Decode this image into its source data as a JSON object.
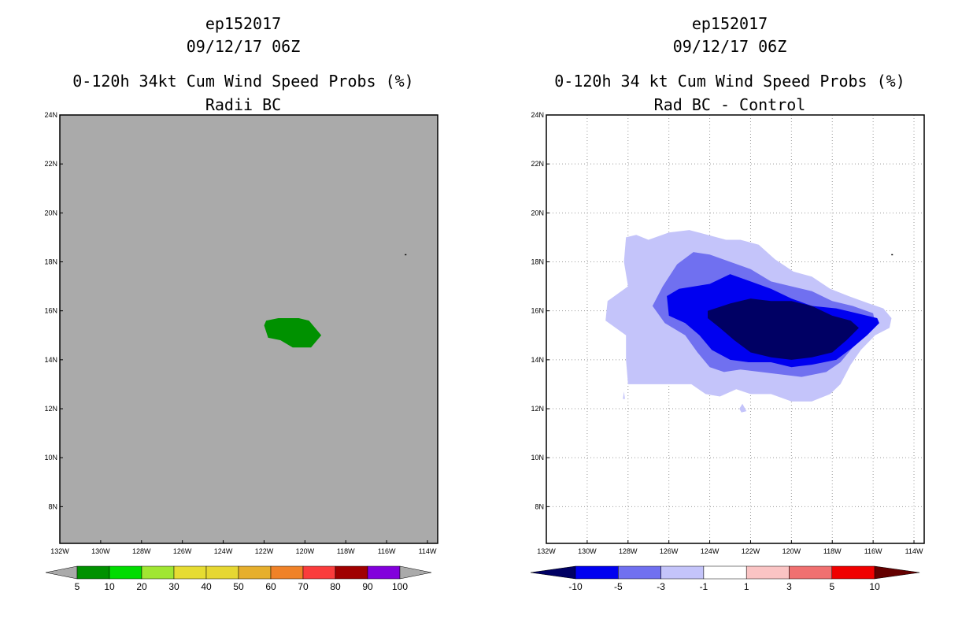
{
  "panels": [
    {
      "id": "left",
      "title_line1": "ep152017",
      "title_line2": "09/12/17 06Z",
      "title_line3": "0-120h 34kt Cum Wind Speed Probs (%)",
      "title_line4": "Radii BC"
    },
    {
      "id": "right",
      "title_line1": "ep152017",
      "title_line2": "09/12/17 06Z",
      "title_line3": "0-120h 34 kt Cum Wind Speed Probs (%)",
      "title_line4": "Rad BC - Control"
    }
  ],
  "chart_data": [
    {
      "type": "heatmap",
      "title": "0-120h 34kt Cum Wind Speed Probs (%) Radii BC",
      "lon_range": [
        -132,
        -113.5
      ],
      "lat_range": [
        6.5,
        24
      ],
      "x_ticks": [
        "132W",
        "130W",
        "128W",
        "126W",
        "124W",
        "122W",
        "120W",
        "118W",
        "116W",
        "114W"
      ],
      "x_tick_values": [
        -132,
        -130,
        -128,
        -126,
        -124,
        -122,
        -120,
        -118,
        -116,
        -114
      ],
      "y_ticks": [
        "24N",
        "22N",
        "20N",
        "18N",
        "16N",
        "14N",
        "12N",
        "10N",
        "8N"
      ],
      "y_tick_values": [
        24,
        22,
        20,
        18,
        16,
        14,
        12,
        10,
        8
      ],
      "grid": false,
      "background_color": "#aaaaaa",
      "colorbar": {
        "labels": [
          "5",
          "10",
          "20",
          "30",
          "40",
          "50",
          "60",
          "70",
          "80",
          "90",
          "100"
        ],
        "colors": [
          "#009100",
          "#00dc00",
          "#a0e632",
          "#e6dc32",
          "#e6d732",
          "#e6af2d",
          "#f08228",
          "#fa3c3c",
          "#a00000",
          "#8200dc"
        ],
        "end_color": "#aaaaaa"
      },
      "regions": [
        {
          "level": "5-10",
          "color": "#009100",
          "polygon": [
            [
              -121.9,
              15.6
            ],
            [
              -121.3,
              15.7
            ],
            [
              -120.3,
              15.7
            ],
            [
              -119.8,
              15.6
            ],
            [
              -119.2,
              15.0
            ],
            [
              -119.7,
              14.5
            ],
            [
              -120.6,
              14.5
            ],
            [
              -121.2,
              14.8
            ],
            [
              -121.8,
              14.9
            ],
            [
              -122.0,
              15.4
            ]
          ]
        }
      ],
      "markers": [
        {
          "lon": -115.07,
          "lat": 18.3
        }
      ]
    },
    {
      "type": "heatmap",
      "title": "0-120h 34 kt Cum Wind Speed Probs (%) Rad BC - Control",
      "lon_range": [
        -132,
        -113.5
      ],
      "lat_range": [
        6.5,
        24
      ],
      "x_ticks": [
        "132W",
        "130W",
        "128W",
        "126W",
        "124W",
        "122W",
        "120W",
        "118W",
        "116W",
        "114W"
      ],
      "x_tick_values": [
        -132,
        -130,
        -128,
        -126,
        -124,
        -122,
        -120,
        -118,
        -116,
        -114
      ],
      "y_ticks": [
        "24N",
        "22N",
        "20N",
        "18N",
        "16N",
        "14N",
        "12N",
        "10N",
        "8N"
      ],
      "y_tick_values": [
        24,
        22,
        20,
        18,
        16,
        14,
        12,
        10,
        8
      ],
      "grid": true,
      "background_color": "#ffffff",
      "colorbar": {
        "labels": [
          "-10",
          "-5",
          "-3",
          "-1",
          "1",
          "3",
          "5",
          "10"
        ],
        "colors": [
          "#0000f0",
          "#7070f0",
          "#c4c4fa",
          "#ffffff",
          "#fac4c4",
          "#f07070",
          "#f00000"
        ],
        "left_end_color": "#000064",
        "right_end_color": "#640000"
      },
      "regions": [
        {
          "level": "-3 to -1",
          "color": "#c4c4fa",
          "polygon": [
            [
              -128.1,
              19.0
            ],
            [
              -127.6,
              19.1
            ],
            [
              -127.0,
              18.9
            ],
            [
              -126.0,
              19.2
            ],
            [
              -125.0,
              19.3
            ],
            [
              -124.1,
              19.1
            ],
            [
              -123.2,
              18.9
            ],
            [
              -122.5,
              18.9
            ],
            [
              -121.6,
              18.7
            ],
            [
              -120.8,
              18.1
            ],
            [
              -119.9,
              17.6
            ],
            [
              -119.0,
              17.4
            ],
            [
              -118.1,
              16.9
            ],
            [
              -117.2,
              16.6
            ],
            [
              -116.2,
              16.3
            ],
            [
              -115.5,
              16.1
            ],
            [
              -115.1,
              15.7
            ],
            [
              -115.2,
              15.3
            ],
            [
              -115.9,
              15.0
            ],
            [
              -116.6,
              14.4
            ],
            [
              -117.1,
              13.8
            ],
            [
              -117.6,
              13.0
            ],
            [
              -118.1,
              12.6
            ],
            [
              -119.0,
              12.3
            ],
            [
              -120.0,
              12.3
            ],
            [
              -121.0,
              12.6
            ],
            [
              -122.0,
              12.6
            ],
            [
              -122.7,
              12.8
            ],
            [
              -123.5,
              12.5
            ],
            [
              -124.2,
              12.6
            ],
            [
              -124.9,
              13.0
            ],
            [
              -126.0,
              13.0
            ],
            [
              -127.0,
              13.0
            ],
            [
              -128.0,
              13.0
            ],
            [
              -128.1,
              14.0
            ],
            [
              -128.1,
              15.0
            ],
            [
              -129.1,
              15.6
            ],
            [
              -129.0,
              16.4
            ],
            [
              -128.0,
              17.0
            ],
            [
              -128.2,
              18.0
            ]
          ]
        },
        {
          "level": "-5 to -3",
          "color": "#7070f0",
          "polygon": [
            [
              -124.8,
              18.4
            ],
            [
              -124.0,
              18.3
            ],
            [
              -123.0,
              18.0
            ],
            [
              -122.0,
              17.7
            ],
            [
              -121.0,
              17.2
            ],
            [
              -120.0,
              17.0
            ],
            [
              -119.0,
              16.8
            ],
            [
              -118.0,
              16.4
            ],
            [
              -117.0,
              16.2
            ],
            [
              -116.0,
              15.9
            ],
            [
              -115.9,
              15.5
            ],
            [
              -116.4,
              15.0
            ],
            [
              -117.0,
              14.5
            ],
            [
              -117.6,
              13.9
            ],
            [
              -118.3,
              13.5
            ],
            [
              -119.5,
              13.3
            ],
            [
              -120.5,
              13.4
            ],
            [
              -121.5,
              13.5
            ],
            [
              -122.5,
              13.6
            ],
            [
              -123.3,
              13.5
            ],
            [
              -124.0,
              13.7
            ],
            [
              -124.6,
              14.3
            ],
            [
              -125.2,
              15.0
            ],
            [
              -126.2,
              15.5
            ],
            [
              -126.8,
              16.2
            ],
            [
              -126.3,
              17.0
            ],
            [
              -125.6,
              17.9
            ]
          ]
        },
        {
          "level": "-10 to -5",
          "color": "#0000f0",
          "polygon": [
            [
              -126.1,
              16.6
            ],
            [
              -125.5,
              16.9
            ],
            [
              -124.0,
              17.1
            ],
            [
              -123.0,
              17.5
            ],
            [
              -122.0,
              17.2
            ],
            [
              -121.0,
              16.9
            ],
            [
              -120.0,
              16.5
            ],
            [
              -119.0,
              16.2
            ],
            [
              -117.8,
              16.1
            ],
            [
              -116.8,
              15.9
            ],
            [
              -115.8,
              15.7
            ],
            [
              -115.7,
              15.5
            ],
            [
              -116.3,
              15.0
            ],
            [
              -117.0,
              14.5
            ],
            [
              -117.8,
              14.0
            ],
            [
              -119.0,
              13.8
            ],
            [
              -120.0,
              13.7
            ],
            [
              -121.0,
              13.9
            ],
            [
              -122.1,
              13.9
            ],
            [
              -123.0,
              14.0
            ],
            [
              -123.9,
              14.4
            ],
            [
              -124.5,
              15.0
            ],
            [
              -125.2,
              15.5
            ],
            [
              -126.0,
              15.8
            ]
          ]
        },
        {
          "level": "< -10",
          "color": "#000064",
          "polygon": [
            [
              -124.1,
              16.0
            ],
            [
              -123.0,
              16.3
            ],
            [
              -122.0,
              16.5
            ],
            [
              -121.0,
              16.4
            ],
            [
              -120.0,
              16.4
            ],
            [
              -119.0,
              16.2
            ],
            [
              -118.0,
              15.8
            ],
            [
              -117.1,
              15.6
            ],
            [
              -116.7,
              15.3
            ],
            [
              -117.3,
              14.8
            ],
            [
              -118.0,
              14.3
            ],
            [
              -119.0,
              14.1
            ],
            [
              -120.0,
              14.0
            ],
            [
              -121.0,
              14.1
            ],
            [
              -122.0,
              14.3
            ],
            [
              -122.8,
              14.8
            ],
            [
              -123.5,
              15.3
            ],
            [
              -124.1,
              15.7
            ]
          ]
        }
      ],
      "islands": [
        {
          "polygon": [
            [
              -128.2,
              12.7
            ],
            [
              -128.15,
              12.4
            ],
            [
              -128.25,
              12.4
            ]
          ],
          "color": "#c4c4fa"
        },
        {
          "polygon": [
            [
              -122.4,
              12.2
            ],
            [
              -122.2,
              11.9
            ],
            [
              -122.45,
              11.85
            ],
            [
              -122.55,
              12.0
            ]
          ],
          "color": "#c4c4fa"
        }
      ],
      "markers": [
        {
          "lon": -115.07,
          "lat": 18.3
        }
      ]
    }
  ]
}
